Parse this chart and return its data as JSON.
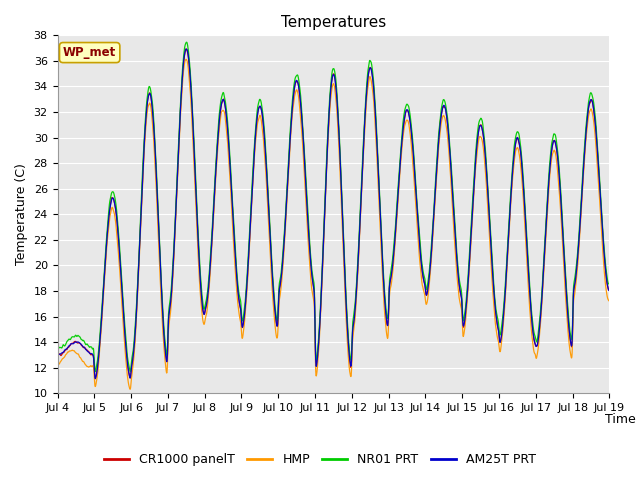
{
  "title": "Temperatures",
  "ylabel": "Temperature (C)",
  "xlabel": "Time",
  "annotation": "WP_met",
  "ylim": [
    10,
    38
  ],
  "n_days": 15,
  "series_names": [
    "CR1000 panelT",
    "HMP",
    "NR01 PRT",
    "AM25T PRT"
  ],
  "series_colors": [
    "#cc0000",
    "#ff9900",
    "#00cc00",
    "#0000cc"
  ],
  "background_color": "#ffffff",
  "plot_bg_color": "#e8e8e8",
  "title_fontsize": 11,
  "label_fontsize": 9,
  "tick_fontsize": 8,
  "legend_fontsize": 9,
  "day_peaks": [
    14.0,
    25.3,
    33.5,
    37.0,
    33.0,
    32.5,
    34.5,
    35.0,
    35.5,
    32.2,
    32.5,
    31.0,
    30.0,
    29.8,
    33.0
  ],
  "day_troughs": [
    13.0,
    11.0,
    12.2,
    16.0,
    16.5,
    15.0,
    18.0,
    11.8,
    15.0,
    18.5,
    17.5,
    15.0,
    13.8,
    13.5,
    18.0
  ],
  "day_trough_pos": [
    0.1,
    0.6,
    0.55,
    0.55,
    0.55,
    0.55,
    0.55,
    0.55,
    0.55,
    0.55,
    0.55,
    0.55,
    0.55,
    0.55,
    0.55
  ]
}
